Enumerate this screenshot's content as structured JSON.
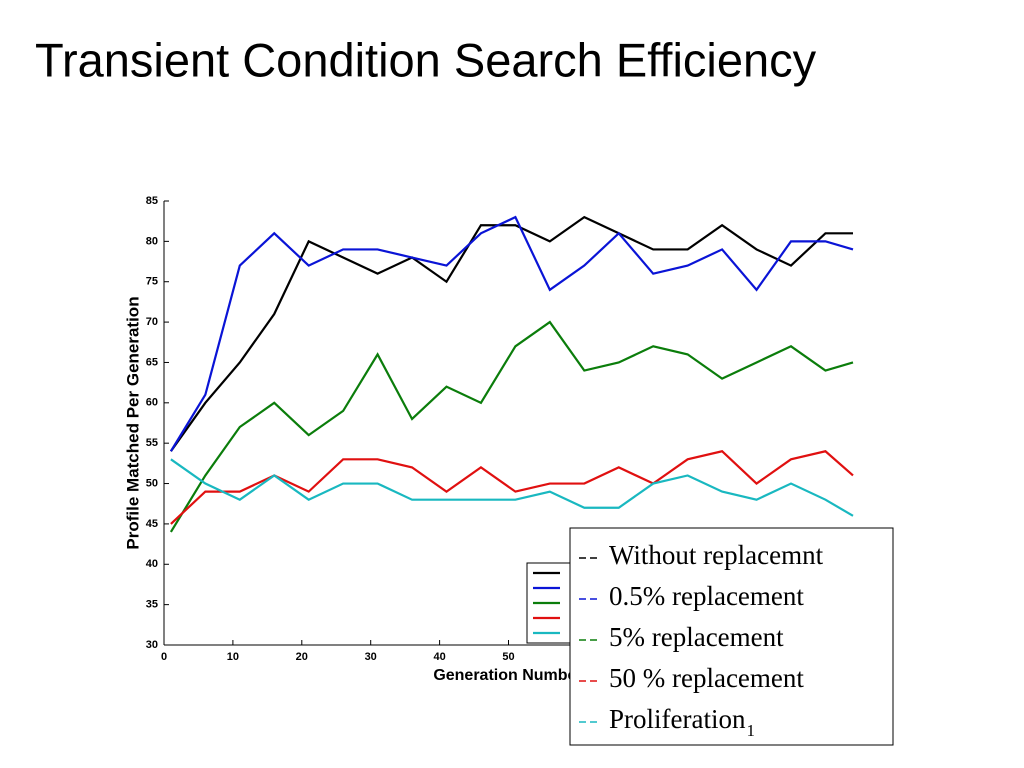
{
  "chart_data": {
    "type": "line",
    "title": "Transient Condition Search Efficiency",
    "xlabel": "Generation Number",
    "ylabel": "Profile Matched Per Generation",
    "x": [
      1,
      6,
      11,
      16,
      21,
      26,
      31,
      36,
      41,
      46,
      51,
      56,
      61,
      66,
      71,
      76,
      81,
      86,
      91,
      96,
      100
    ],
    "xlim": [
      0,
      100
    ],
    "xticks": [
      0,
      10,
      20,
      30,
      40,
      50
    ],
    "ylim": [
      30,
      85
    ],
    "yticks": [
      30,
      35,
      40,
      45,
      50,
      55,
      60,
      65,
      70,
      75,
      80,
      85
    ],
    "series": [
      {
        "name": "Without replacemnt",
        "color": "#000000",
        "values": [
          54,
          60,
          65,
          71,
          80,
          78,
          76,
          78,
          75,
          82,
          82,
          80,
          83,
          81,
          79,
          79,
          82,
          79,
          77,
          81,
          81
        ]
      },
      {
        "name": "0.5% replacement",
        "color": "#0a14d6",
        "values": [
          54,
          61,
          77,
          81,
          77,
          79,
          79,
          78,
          77,
          81,
          83,
          74,
          77,
          81,
          76,
          77,
          79,
          74,
          80,
          80,
          79
        ]
      },
      {
        "name": "5% replacement",
        "color": "#0b7d0b",
        "values": [
          44,
          51,
          57,
          60,
          56,
          59,
          66,
          58,
          62,
          60,
          67,
          70,
          64,
          65,
          67,
          66,
          63,
          65,
          67,
          64,
          65
        ]
      },
      {
        "name": "50 % replacement",
        "color": "#e01010",
        "values": [
          45,
          49,
          49,
          51,
          49,
          53,
          53,
          52,
          49,
          52,
          49,
          50,
          50,
          52,
          50,
          53,
          54,
          50,
          53,
          54,
          51
        ]
      },
      {
        "name": "Proliferation",
        "name_subscript": "1",
        "color": "#19b8c0",
        "values": [
          53,
          50,
          48,
          51,
          48,
          50,
          50,
          48,
          48,
          48,
          48,
          49,
          47,
          47,
          50,
          51,
          49,
          48,
          50,
          48,
          46
        ]
      }
    ]
  }
}
